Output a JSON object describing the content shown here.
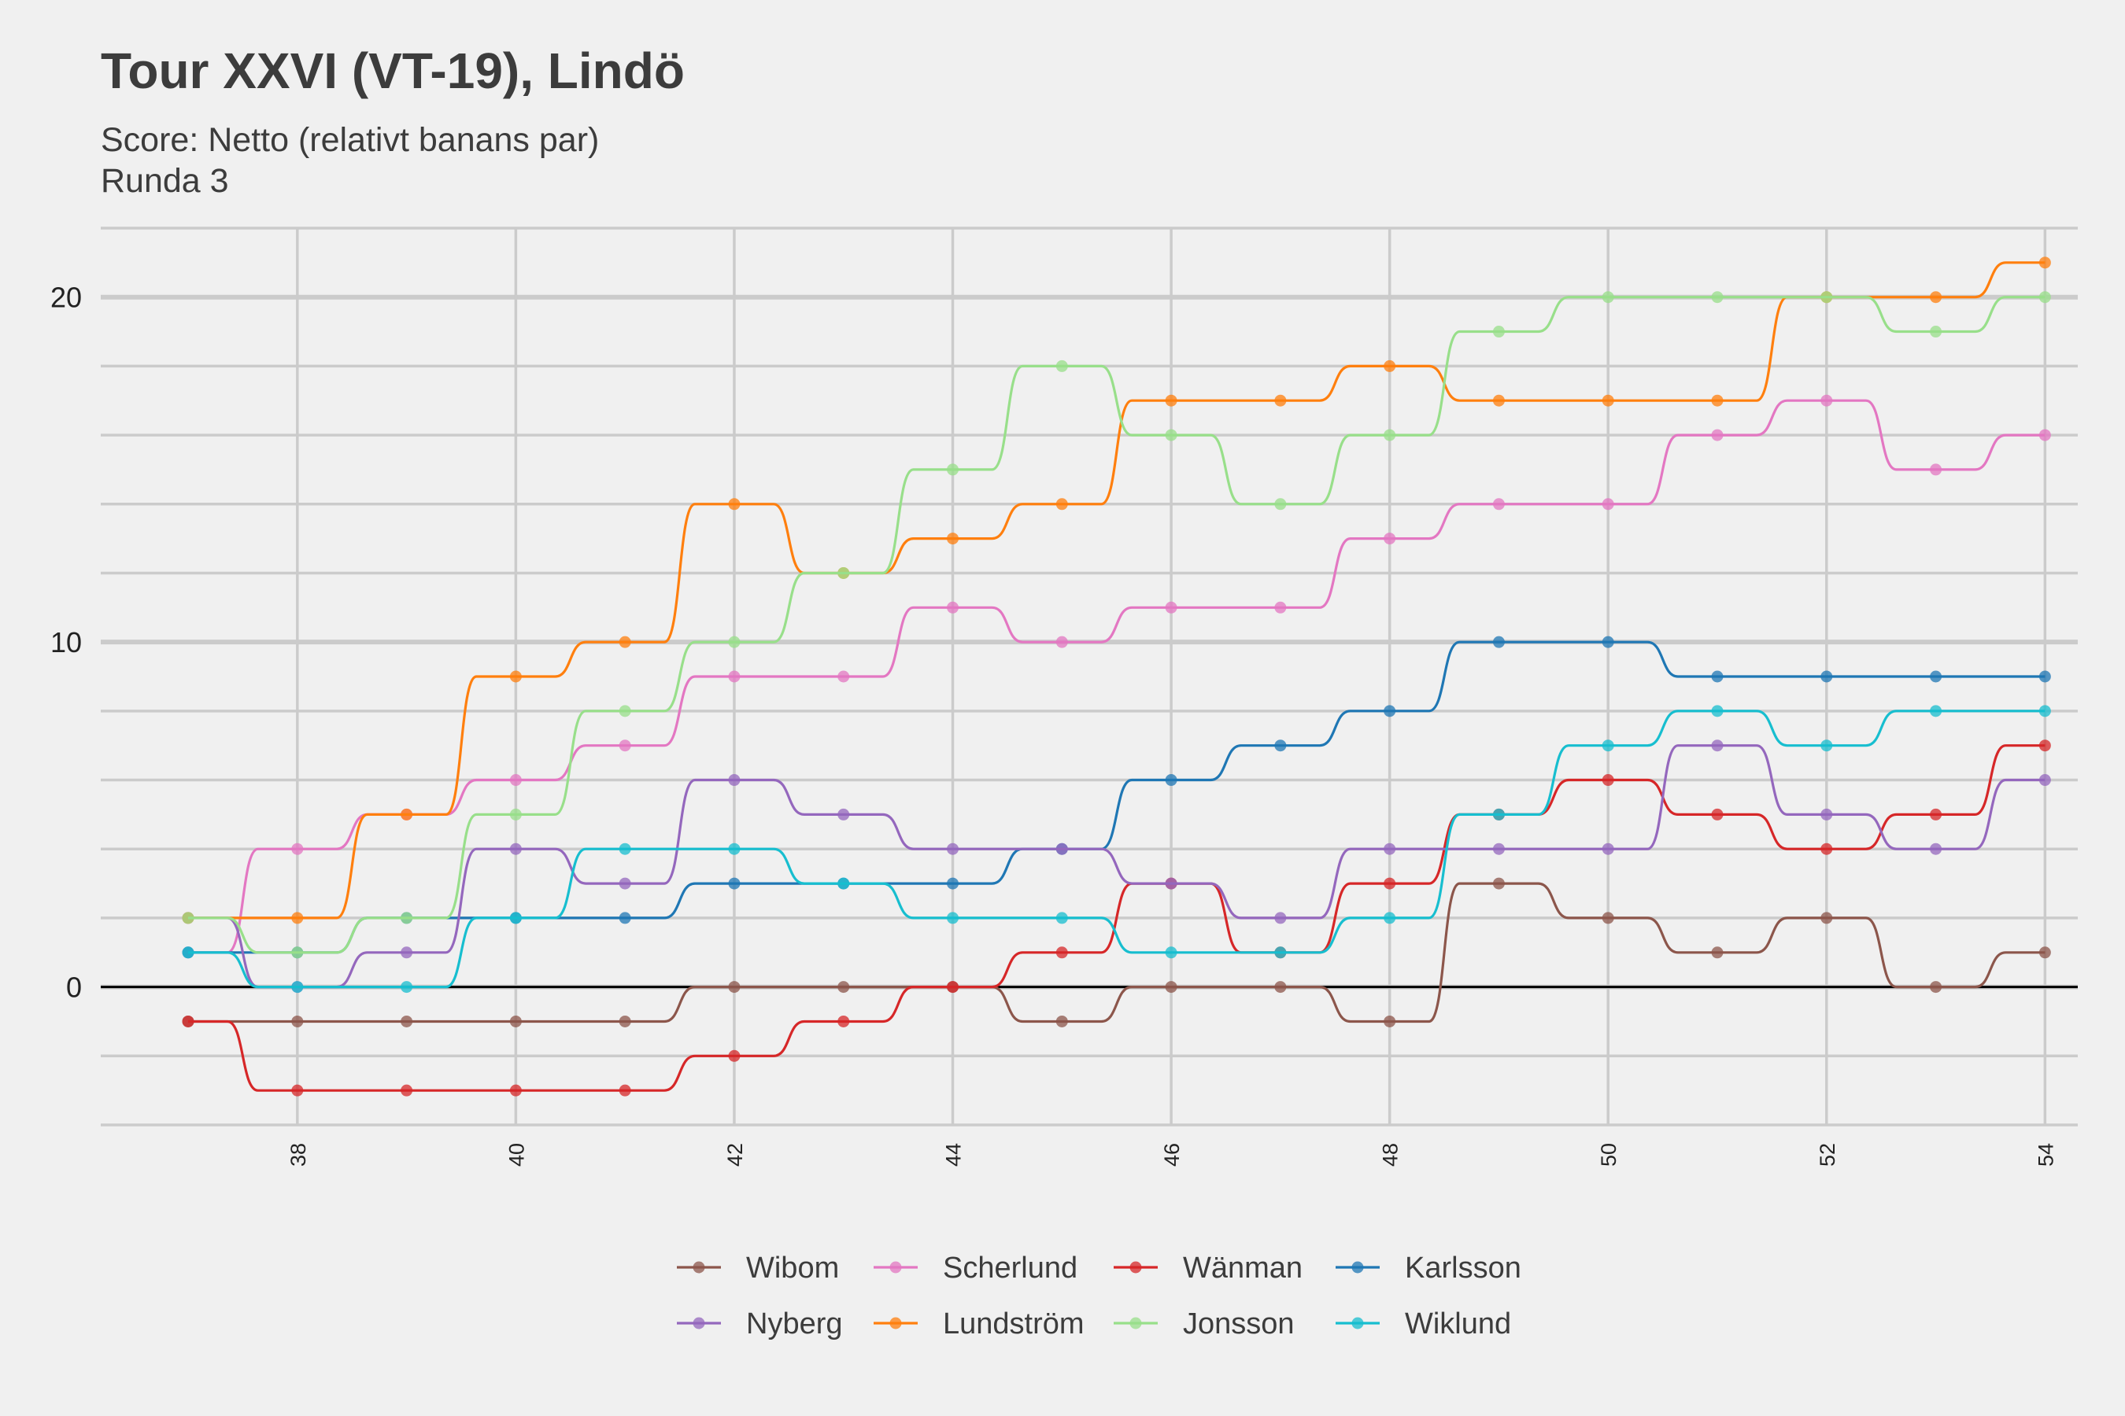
{
  "chart_data": {
    "type": "line",
    "title": "Tour XXVI (VT-19), Lindö",
    "subtitle_lines": [
      "Score: Netto (relativt banans par)",
      "Runda 3"
    ],
    "xlabel": "",
    "ylabel": "",
    "x": [
      37,
      38,
      39,
      40,
      41,
      42,
      43,
      44,
      45,
      46,
      47,
      48,
      49,
      50,
      51,
      52,
      53,
      54
    ],
    "xlim": [
      36.2,
      54.3
    ],
    "ylim": [
      -4,
      22
    ],
    "x_ticks": [
      38,
      40,
      42,
      44,
      46,
      48,
      50,
      52,
      54
    ],
    "y_ticks": [
      0,
      10,
      20
    ],
    "grid": true,
    "legend_position": "bottom",
    "series": [
      {
        "name": "Wibom",
        "color": "#8c564b",
        "values": [
          -1,
          -1,
          -1,
          -1,
          -1,
          0,
          0,
          0,
          -1,
          0,
          0,
          -1,
          3,
          2,
          1,
          2,
          0,
          1
        ]
      },
      {
        "name": "Scherlund",
        "color": "#e377c2",
        "values": [
          1,
          4,
          5,
          6,
          7,
          9,
          9,
          11,
          10,
          11,
          11,
          13,
          14,
          14,
          16,
          17,
          15,
          16
        ]
      },
      {
        "name": "Wänman",
        "color": "#d62728",
        "values": [
          -1,
          -3,
          -3,
          -3,
          -3,
          -2,
          -1,
          0,
          1,
          3,
          1,
          3,
          5,
          6,
          5,
          4,
          5,
          7
        ]
      },
      {
        "name": "Karlsson",
        "color": "#1f77b4",
        "values": [
          1,
          1,
          2,
          2,
          2,
          3,
          3,
          3,
          4,
          6,
          7,
          8,
          10,
          10,
          9,
          9,
          9,
          9
        ]
      },
      {
        "name": "Nyberg",
        "color": "#9467bd",
        "values": [
          2,
          0,
          1,
          4,
          3,
          6,
          5,
          4,
          4,
          3,
          2,
          4,
          4,
          4,
          7,
          5,
          4,
          6
        ]
      },
      {
        "name": "Lundström",
        "color": "#ff7f0e",
        "values": [
          2,
          2,
          5,
          9,
          10,
          14,
          12,
          13,
          14,
          17,
          17,
          18,
          17,
          17,
          17,
          20,
          20,
          21
        ]
      },
      {
        "name": "Jonsson",
        "color": "#98df8a",
        "values": [
          2,
          1,
          2,
          5,
          8,
          10,
          12,
          15,
          18,
          16,
          14,
          16,
          19,
          20,
          20,
          20,
          19,
          20
        ]
      },
      {
        "name": "Wiklund",
        "color": "#17becf",
        "values": [
          1,
          0,
          0,
          2,
          4,
          4,
          3,
          2,
          2,
          1,
          1,
          2,
          5,
          7,
          8,
          7,
          8,
          8
        ]
      }
    ]
  }
}
